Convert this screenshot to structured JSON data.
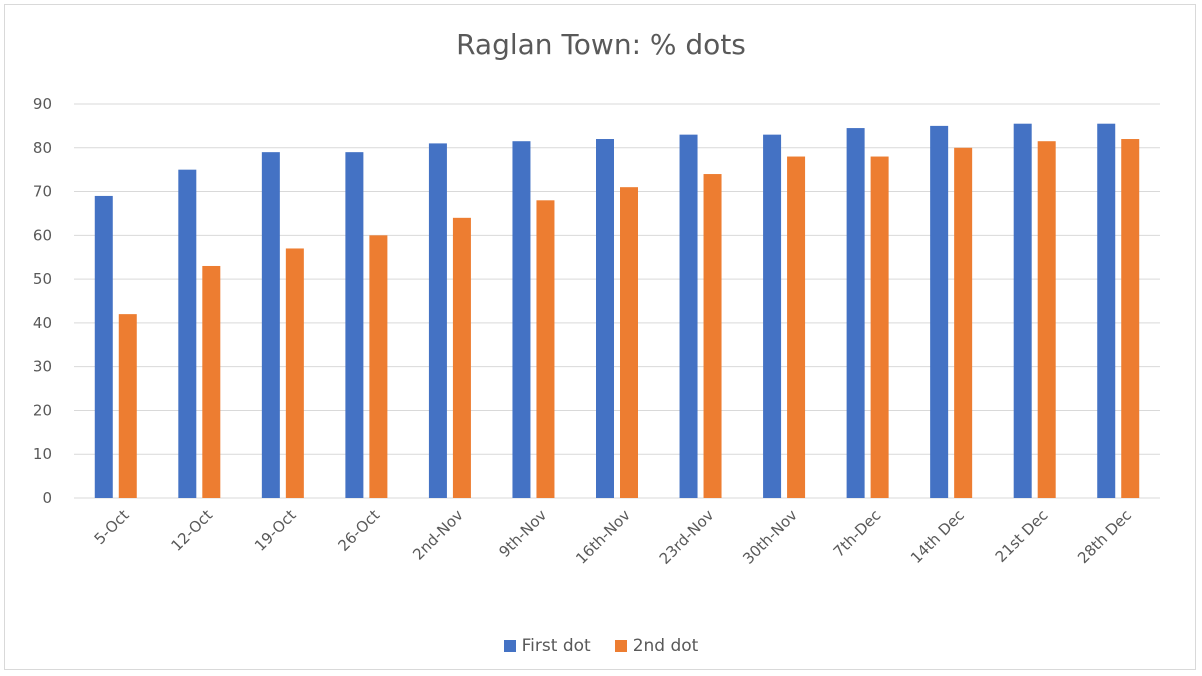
{
  "chart_data": {
    "type": "bar",
    "title": "Raglan Town: % dots",
    "xlabel": "",
    "ylabel": "",
    "ylim": [
      0,
      90
    ],
    "yticks": [
      "0",
      "10",
      "20",
      "30",
      "40",
      "50",
      "60",
      "70",
      "80",
      "90"
    ],
    "grid": true,
    "legend_position": "bottom",
    "categories": [
      "5-Oct",
      "12-Oct",
      "19-Oct",
      "26-Oct",
      "2nd-Nov",
      "9th-Nov",
      "16th-Nov",
      "23rd-Nov",
      "30th-Nov",
      "7th-Dec",
      "14th Dec",
      "21st Dec",
      "28th Dec"
    ],
    "series": [
      {
        "name": "First dot",
        "color": "#4472c4",
        "values": [
          69,
          75,
          79,
          79,
          81,
          81.5,
          82,
          83,
          83,
          84.5,
          85,
          85.5,
          85.5
        ]
      },
      {
        "name": "2nd dot",
        "color": "#ed7d31",
        "values": [
          42,
          53,
          57,
          60,
          64,
          68,
          71,
          74,
          78,
          78,
          80,
          81.5,
          82
        ]
      }
    ]
  }
}
